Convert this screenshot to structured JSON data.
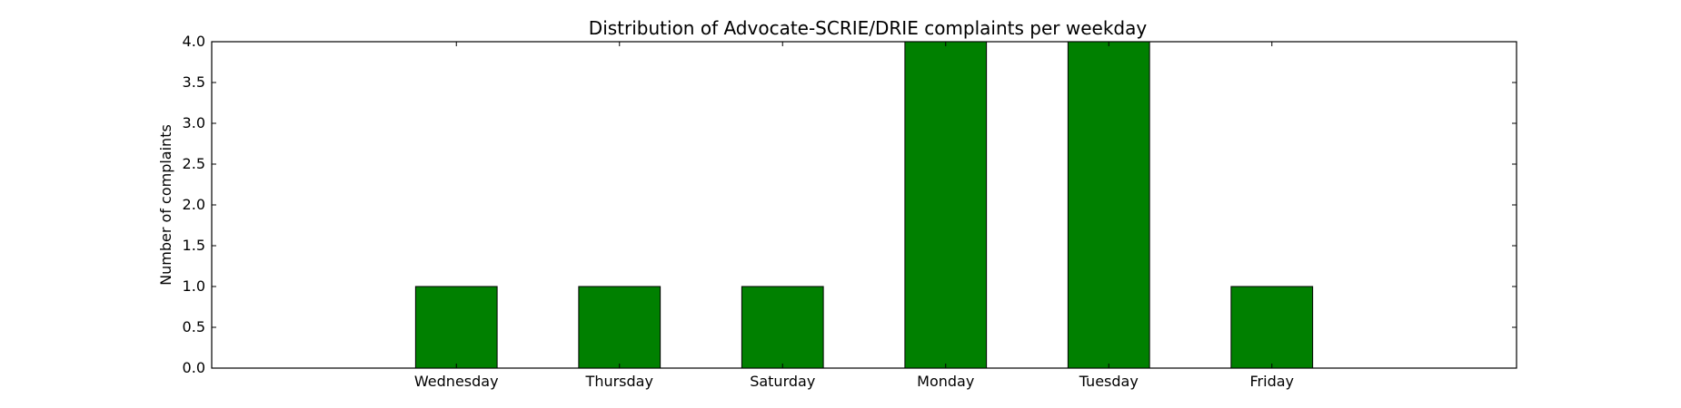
{
  "chart_data": {
    "type": "bar",
    "title": "Distribution of  Advocate-SCRIE/DRIE complaints per weekday",
    "xlabel": "",
    "ylabel": "Number of complaints",
    "categories": [
      "Wednesday",
      "Thursday",
      "Saturday",
      "Monday",
      "Tuesday",
      "Friday"
    ],
    "values": [
      1,
      1,
      1,
      4,
      4,
      1
    ],
    "ylim": [
      0,
      4
    ],
    "yticks": [
      "0.0",
      "0.5",
      "1.0",
      "1.5",
      "2.0",
      "2.5",
      "3.0",
      "3.5",
      "4.0"
    ],
    "grid": false,
    "legend": "none",
    "colors": {
      "bar": "#008000",
      "edge": "#000000"
    }
  }
}
